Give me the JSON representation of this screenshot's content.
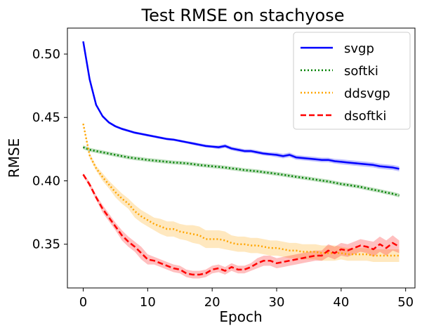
{
  "chart_data": {
    "type": "line",
    "title": "Test RMSE on stachyose",
    "xlabel": "Epoch",
    "ylabel": "RMSE",
    "xlim": [
      -2.45,
      51.45
    ],
    "ylim": [
      0.3155,
      0.5205
    ],
    "xticks": [
      0,
      10,
      20,
      30,
      40,
      50
    ],
    "xtick_labels": [
      "0",
      "10",
      "20",
      "30",
      "40",
      "50"
    ],
    "yticks": [
      0.35,
      0.4,
      0.45,
      0.5
    ],
    "ytick_labels": [
      "0.35",
      "0.40",
      "0.45",
      "0.50"
    ],
    "grid": false,
    "legend_position": "top-right",
    "x": [
      0,
      1,
      2,
      3,
      4,
      5,
      6,
      7,
      8,
      9,
      10,
      11,
      12,
      13,
      14,
      15,
      16,
      17,
      18,
      19,
      20,
      21,
      22,
      23,
      24,
      25,
      26,
      27,
      28,
      29,
      30,
      31,
      32,
      33,
      34,
      35,
      36,
      37,
      38,
      39,
      40,
      41,
      42,
      43,
      44,
      45,
      46,
      47,
      48,
      49
    ],
    "series": [
      {
        "name": "svgp",
        "color": "#0000ff",
        "style": "solid",
        "values": [
          0.51,
          0.48,
          0.46,
          0.451,
          0.446,
          0.443,
          0.441,
          0.4395,
          0.438,
          0.437,
          0.436,
          0.435,
          0.434,
          0.433,
          0.4325,
          0.4315,
          0.4305,
          0.4295,
          0.4285,
          0.4275,
          0.427,
          0.4265,
          0.4275,
          0.4255,
          0.4245,
          0.4235,
          0.4235,
          0.4225,
          0.4215,
          0.421,
          0.4205,
          0.4195,
          0.4205,
          0.4185,
          0.418,
          0.4175,
          0.417,
          0.4165,
          0.4165,
          0.4155,
          0.415,
          0.4145,
          0.414,
          0.4135,
          0.413,
          0.4125,
          0.4115,
          0.411,
          0.4105,
          0.4095
        ],
        "band": [
          0.001,
          0.001,
          0.001,
          0.001,
          0.001,
          0.001,
          0.001,
          0.001,
          0.001,
          0.001,
          0.001,
          0.001,
          0.001,
          0.001,
          0.001,
          0.001,
          0.001,
          0.0012,
          0.0012,
          0.0012,
          0.0012,
          0.0015,
          0.0015,
          0.0015,
          0.0015,
          0.0015,
          0.0015,
          0.0015,
          0.0015,
          0.0015,
          0.0018,
          0.0018,
          0.0018,
          0.0018,
          0.0018,
          0.0018,
          0.0018,
          0.0018,
          0.0018,
          0.0018,
          0.002,
          0.002,
          0.002,
          0.002,
          0.002,
          0.002,
          0.002,
          0.002,
          0.002,
          0.002
        ]
      },
      {
        "name": "softki",
        "color": "#008000",
        "style": "dotted",
        "values": [
          0.4265,
          0.4245,
          0.4235,
          0.4225,
          0.4215,
          0.4205,
          0.4195,
          0.4185,
          0.4178,
          0.4172,
          0.4165,
          0.416,
          0.4155,
          0.415,
          0.4145,
          0.4142,
          0.4138,
          0.4132,
          0.4125,
          0.412,
          0.4115,
          0.411,
          0.4105,
          0.4098,
          0.4092,
          0.4085,
          0.408,
          0.4075,
          0.4068,
          0.4062,
          0.4055,
          0.4048,
          0.404,
          0.4032,
          0.4025,
          0.4018,
          0.401,
          0.4002,
          0.3995,
          0.3985,
          0.3975,
          0.3968,
          0.396,
          0.3952,
          0.394,
          0.393,
          0.392,
          0.3908,
          0.3898,
          0.3885
        ],
        "band": [
          0.0015,
          0.0015,
          0.0015,
          0.0015,
          0.0015,
          0.0015,
          0.0015,
          0.0015,
          0.0015,
          0.0015,
          0.0015,
          0.0015,
          0.0015,
          0.0015,
          0.0015,
          0.0015,
          0.0015,
          0.0015,
          0.0015,
          0.0015,
          0.0015,
          0.0015,
          0.0015,
          0.0015,
          0.0015,
          0.0015,
          0.0015,
          0.0015,
          0.0015,
          0.0015,
          0.0015,
          0.0015,
          0.0015,
          0.0015,
          0.0015,
          0.0015,
          0.0015,
          0.0015,
          0.0015,
          0.0015,
          0.0015,
          0.0015,
          0.0015,
          0.0015,
          0.0015,
          0.0015,
          0.0015,
          0.0015,
          0.0015,
          0.0015
        ]
      },
      {
        "name": "ddsvgp",
        "color": "#ffa500",
        "style": "dotted",
        "values": [
          0.445,
          0.42,
          0.41,
          0.403,
          0.397,
          0.391,
          0.386,
          0.382,
          0.376,
          0.372,
          0.369,
          0.366,
          0.364,
          0.362,
          0.362,
          0.36,
          0.359,
          0.358,
          0.357,
          0.354,
          0.354,
          0.354,
          0.353,
          0.351,
          0.35,
          0.35,
          0.349,
          0.349,
          0.348,
          0.347,
          0.347,
          0.346,
          0.345,
          0.345,
          0.344,
          0.344,
          0.344,
          0.343,
          0.343,
          0.343,
          0.343,
          0.342,
          0.342,
          0.342,
          0.342,
          0.341,
          0.341,
          0.341,
          0.341,
          0.341
        ],
        "band": [
          0.001,
          0.002,
          0.002,
          0.003,
          0.003,
          0.004,
          0.004,
          0.004,
          0.005,
          0.005,
          0.005,
          0.005,
          0.006,
          0.006,
          0.006,
          0.006,
          0.006,
          0.007,
          0.007,
          0.007,
          0.007,
          0.007,
          0.007,
          0.006,
          0.006,
          0.006,
          0.006,
          0.006,
          0.006,
          0.006,
          0.006,
          0.006,
          0.006,
          0.006,
          0.006,
          0.006,
          0.006,
          0.006,
          0.006,
          0.006,
          0.005,
          0.005,
          0.005,
          0.005,
          0.005,
          0.005,
          0.005,
          0.005,
          0.005,
          0.005
        ]
      },
      {
        "name": "dsoftki",
        "color": "#ff0000",
        "style": "dashed",
        "values": [
          0.405,
          0.397,
          0.387,
          0.378,
          0.371,
          0.364,
          0.357,
          0.352,
          0.348,
          0.343,
          0.338,
          0.337,
          0.335,
          0.333,
          0.331,
          0.33,
          0.327,
          0.326,
          0.326,
          0.327,
          0.33,
          0.331,
          0.329,
          0.332,
          0.33,
          0.33,
          0.332,
          0.335,
          0.337,
          0.337,
          0.335,
          0.336,
          0.337,
          0.338,
          0.339,
          0.34,
          0.341,
          0.341,
          0.345,
          0.343,
          0.346,
          0.345,
          0.347,
          0.349,
          0.348,
          0.346,
          0.35,
          0.347,
          0.351,
          0.348
        ],
        "band": [
          0.001,
          0.002,
          0.002,
          0.003,
          0.003,
          0.003,
          0.004,
          0.004,
          0.004,
          0.005,
          0.004,
          0.003,
          0.003,
          0.003,
          0.003,
          0.003,
          0.003,
          0.003,
          0.003,
          0.003,
          0.003,
          0.003,
          0.003,
          0.003,
          0.003,
          0.003,
          0.003,
          0.004,
          0.004,
          0.004,
          0.004,
          0.004,
          0.004,
          0.004,
          0.004,
          0.004,
          0.004,
          0.004,
          0.005,
          0.005,
          0.005,
          0.005,
          0.005,
          0.005,
          0.005,
          0.006,
          0.006,
          0.006,
          0.006,
          0.005
        ]
      }
    ]
  }
}
